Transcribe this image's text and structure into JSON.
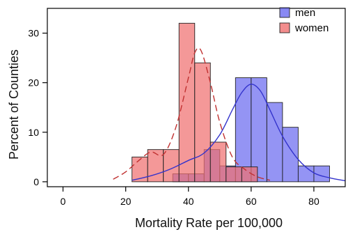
{
  "chart_data": {
    "type": "bar",
    "title": "",
    "xlabel": "Mortality Rate per 100,000",
    "ylabel": "Percent of Counties",
    "xlim": [
      -5,
      90
    ],
    "ylim": [
      -1,
      35
    ],
    "xticks": [
      0,
      20,
      40,
      60,
      80
    ],
    "yticks": [
      0,
      10,
      20,
      30
    ],
    "bin_width": 5,
    "legend_position": "top-right",
    "grid": false,
    "series": [
      {
        "name": "men",
        "color": "#6b6bf0",
        "bins": [
          {
            "x0": 35,
            "x1": 40,
            "value": 1.6
          },
          {
            "x0": 40,
            "x1": 45,
            "value": 1.6
          },
          {
            "x0": 45,
            "x1": 50,
            "value": 6.5
          },
          {
            "x0": 50,
            "x1": 55,
            "value": 3.2
          },
          {
            "x0": 55,
            "x1": 60,
            "value": 21
          },
          {
            "x0": 60,
            "x1": 65,
            "value": 21
          },
          {
            "x0": 65,
            "x1": 70,
            "value": 16
          },
          {
            "x0": 70,
            "x1": 75,
            "value": 11
          },
          {
            "x0": 75,
            "x1": 80,
            "value": 3.2
          },
          {
            "x0": 80,
            "x1": 85,
            "value": 3.2
          }
        ],
        "density_curve": [
          [
            22,
            0.3
          ],
          [
            28,
            1.2
          ],
          [
            34,
            2.5
          ],
          [
            40,
            4.3
          ],
          [
            45,
            5.8
          ],
          [
            50,
            9.5
          ],
          [
            54,
            14.5
          ],
          [
            57,
            18
          ],
          [
            60,
            19.7
          ],
          [
            63,
            18.3
          ],
          [
            66,
            14.5
          ],
          [
            70,
            9.2
          ],
          [
            75,
            4.5
          ],
          [
            80,
            1.8
          ],
          [
            85,
            0.8
          ],
          [
            90,
            0.2
          ]
        ]
      },
      {
        "name": "women",
        "color": "#f07070",
        "bins": [
          {
            "x0": 22,
            "x1": 27,
            "value": 5
          },
          {
            "x0": 27,
            "x1": 32,
            "value": 6.5
          },
          {
            "x0": 32,
            "x1": 37,
            "value": 6.5
          },
          {
            "x0": 37,
            "x1": 42,
            "value": 32
          },
          {
            "x0": 42,
            "x1": 47,
            "value": 24
          },
          {
            "x0": 47,
            "x1": 52,
            "value": 8
          },
          {
            "x0": 52,
            "x1": 57,
            "value": 3
          },
          {
            "x0": 57,
            "x1": 62,
            "value": 3
          }
        ],
        "density_curve": [
          [
            16,
            0.5
          ],
          [
            20,
            2
          ],
          [
            24,
            4.2
          ],
          [
            28,
            6
          ],
          [
            32,
            5.5
          ],
          [
            36,
            11
          ],
          [
            40,
            21
          ],
          [
            42,
            26
          ],
          [
            44,
            26.5
          ],
          [
            47,
            20
          ],
          [
            50,
            12
          ],
          [
            54,
            5
          ],
          [
            58,
            2.5
          ],
          [
            62,
            1
          ],
          [
            66,
            0.3
          ]
        ]
      }
    ],
    "overlap_color": "#8a3a7a"
  }
}
